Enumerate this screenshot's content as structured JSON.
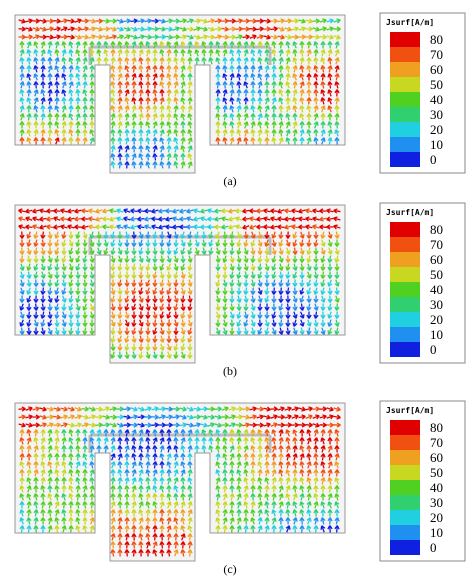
{
  "figure": {
    "panels": [
      {
        "label": "(a)",
        "legend": {
          "title": "Jsurf[A/m]",
          "labels": [
            "80",
            "70",
            "60",
            "50",
            "40",
            "30",
            "20",
            "10",
            "0"
          ]
        }
      },
      {
        "label": "(b)",
        "legend": {
          "title": "Jsurf[A/m]",
          "labels": [
            "80",
            "70",
            "60",
            "50",
            "40",
            "30",
            "20",
            "10",
            "0"
          ]
        }
      },
      {
        "label": "(c)",
        "legend": {
          "title": "Jsurf[A/m]",
          "labels": [
            "80",
            "70",
            "60",
            "50",
            "40",
            "30",
            "20",
            "10",
            "0"
          ]
        }
      }
    ]
  }
}
